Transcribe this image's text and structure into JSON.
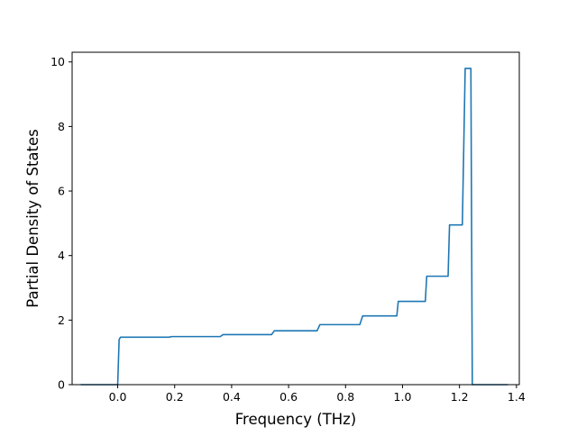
{
  "chart_data": {
    "type": "line",
    "title": "",
    "xlabel": "Frequency (THz)",
    "ylabel": "Partial Density of States",
    "xlim": [
      -0.16,
      1.41
    ],
    "ylim": [
      0,
      10.3
    ],
    "xticks": [
      0.0,
      0.2,
      0.4,
      0.6,
      0.8,
      1.0,
      1.2,
      1.4
    ],
    "xtick_labels": [
      "0.0",
      "0.2",
      "0.4",
      "0.6",
      "0.8",
      "1.0",
      "1.2",
      "1.4"
    ],
    "yticks": [
      0,
      2,
      4,
      6,
      8,
      10
    ],
    "ytick_labels": [
      "0",
      "2",
      "4",
      "6",
      "8",
      "10"
    ],
    "grid": false,
    "series": [
      {
        "color": "#1f77b4",
        "points": [
          [
            -0.13,
            0.0
          ],
          [
            0.0,
            0.0
          ],
          [
            0.005,
            1.4
          ],
          [
            0.01,
            1.47
          ],
          [
            0.18,
            1.47
          ],
          [
            0.19,
            1.49
          ],
          [
            0.36,
            1.49
          ],
          [
            0.37,
            1.55
          ],
          [
            0.54,
            1.55
          ],
          [
            0.55,
            1.67
          ],
          [
            0.7,
            1.67
          ],
          [
            0.71,
            1.86
          ],
          [
            0.85,
            1.86
          ],
          [
            0.86,
            2.13
          ],
          [
            0.98,
            2.13
          ],
          [
            0.985,
            2.58
          ],
          [
            1.08,
            2.58
          ],
          [
            1.085,
            3.36
          ],
          [
            1.16,
            3.36
          ],
          [
            1.165,
            4.95
          ],
          [
            1.21,
            4.95
          ],
          [
            1.22,
            9.8
          ],
          [
            1.24,
            9.8
          ],
          [
            1.245,
            0.0
          ],
          [
            1.37,
            0.0
          ]
        ]
      }
    ]
  }
}
